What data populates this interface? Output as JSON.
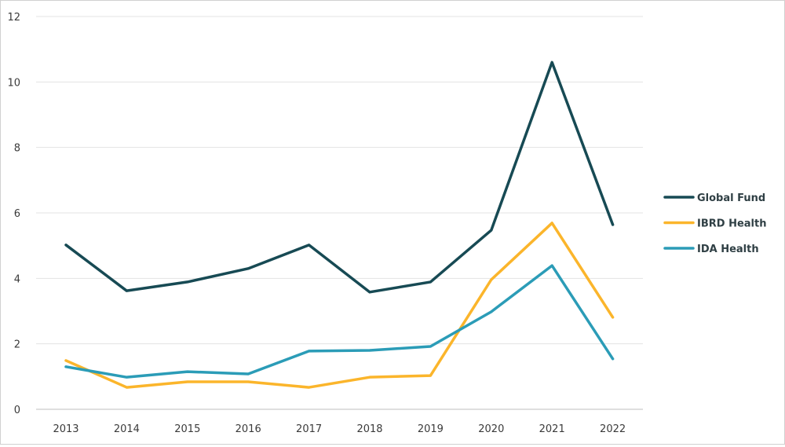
{
  "chart_data": {
    "type": "line",
    "title": "",
    "xlabel": "",
    "ylabel": "",
    "x": [
      "2013",
      "2014",
      "2015",
      "2016",
      "2017",
      "2018",
      "2019",
      "2020",
      "2021",
      "2022"
    ],
    "ylim": [
      0,
      12
    ],
    "yticks": [
      "0",
      "2",
      "4",
      "6",
      "8",
      "10",
      "12"
    ],
    "grid": true,
    "legend_position": "right",
    "series": [
      {
        "name": "Global Fund",
        "color": "#174a54",
        "values": [
          5.02,
          3.62,
          3.89,
          4.3,
          5.02,
          3.58,
          3.89,
          5.47,
          10.6,
          5.64
        ]
      },
      {
        "name": "IBRD Health",
        "color": "#fbb52b",
        "values": [
          1.49,
          0.67,
          0.84,
          0.84,
          0.67,
          0.98,
          1.03,
          3.96,
          5.69,
          2.81
        ]
      },
      {
        "name": "IDA Health",
        "color": "#2b9cb7",
        "values": [
          1.3,
          0.98,
          1.15,
          1.08,
          1.78,
          1.8,
          1.92,
          2.98,
          4.39,
          1.54
        ]
      }
    ]
  }
}
